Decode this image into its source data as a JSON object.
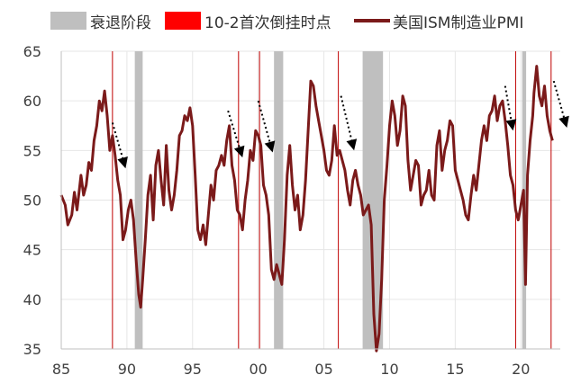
{
  "chart_data": {
    "type": "line",
    "legend": [
      {
        "name": "衰退阶段",
        "color": "#BFBFBF",
        "kind": "band"
      },
      {
        "name": "10-2首次倒挂时点",
        "color": "#FF0000",
        "kind": "vline"
      },
      {
        "name": "美国ISM制造业PMI",
        "color": "#7B1A1A",
        "kind": "line"
      }
    ],
    "xticks": [
      "85",
      "90",
      "95",
      "00",
      "05",
      "10",
      "15",
      "20"
    ],
    "xtick_values": [
      1985,
      1990,
      1995,
      2000,
      2005,
      2010,
      2015,
      2020
    ],
    "yticks": [
      "35",
      "40",
      "45",
      "50",
      "55",
      "60",
      "65"
    ],
    "ylim": [
      35,
      65
    ],
    "xlim": [
      1985,
      2023
    ],
    "recessions": [
      [
        1990.6,
        1991.2
      ],
      [
        2001.2,
        2001.9
      ],
      [
        2007.95,
        2009.5
      ],
      [
        2020.1,
        2020.4
      ]
    ],
    "inversion_dates": [
      1988.9,
      1998.5,
      2000.1,
      2006.1,
      2019.6,
      2022.3
    ],
    "arrows": [
      {
        "from": [
          1988.9,
          57.8
        ],
        "to": [
          1989.9,
          53.2
        ]
      },
      {
        "from": [
          1997.7,
          59.0
        ],
        "to": [
          1998.8,
          54.3
        ]
      },
      {
        "from": [
          2000.0,
          60.0
        ],
        "to": [
          2001.1,
          54.8
        ]
      },
      {
        "from": [
          2006.3,
          60.5
        ],
        "to": [
          2007.3,
          55.0
        ]
      },
      {
        "from": [
          2018.8,
          61.5
        ],
        "to": [
          2019.4,
          57.0
        ]
      },
      {
        "from": [
          2022.5,
          62.0
        ],
        "to": [
          2023.5,
          57.3
        ]
      }
    ],
    "series": [
      {
        "name": "美国ISM制造业PMI",
        "color": "#7B1A1A",
        "points": [
          [
            1985.0,
            50.5
          ],
          [
            1985.3,
            49.5
          ],
          [
            1985.5,
            47.5
          ],
          [
            1985.8,
            48.5
          ],
          [
            1986.0,
            50.8
          ],
          [
            1986.2,
            49.0
          ],
          [
            1986.5,
            52.5
          ],
          [
            1986.7,
            50.5
          ],
          [
            1986.9,
            51.5
          ],
          [
            1987.1,
            53.8
          ],
          [
            1987.3,
            53.0
          ],
          [
            1987.5,
            56.0
          ],
          [
            1987.7,
            57.5
          ],
          [
            1987.9,
            60.0
          ],
          [
            1988.1,
            59.0
          ],
          [
            1988.3,
            61.0
          ],
          [
            1988.5,
            58.5
          ],
          [
            1988.7,
            55.0
          ],
          [
            1988.9,
            56.5
          ],
          [
            1989.1,
            54.5
          ],
          [
            1989.3,
            52.0
          ],
          [
            1989.5,
            50.5
          ],
          [
            1989.7,
            46.0
          ],
          [
            1989.9,
            47.0
          ],
          [
            1990.1,
            49.0
          ],
          [
            1990.3,
            50.0
          ],
          [
            1990.5,
            48.0
          ],
          [
            1990.7,
            44.0
          ],
          [
            1990.9,
            40.5
          ],
          [
            1991.05,
            39.2
          ],
          [
            1991.2,
            42.0
          ],
          [
            1991.4,
            46.0
          ],
          [
            1991.6,
            50.5
          ],
          [
            1991.8,
            52.5
          ],
          [
            1992.0,
            48.0
          ],
          [
            1992.2,
            53.5
          ],
          [
            1992.4,
            55.0
          ],
          [
            1992.6,
            52.0
          ],
          [
            1992.8,
            49.5
          ],
          [
            1993.0,
            55.5
          ],
          [
            1993.2,
            51.0
          ],
          [
            1993.4,
            49.0
          ],
          [
            1993.6,
            50.5
          ],
          [
            1993.8,
            53.0
          ],
          [
            1994.0,
            56.5
          ],
          [
            1994.2,
            57.0
          ],
          [
            1994.4,
            58.5
          ],
          [
            1994.6,
            58.0
          ],
          [
            1994.8,
            59.3
          ],
          [
            1995.0,
            57.5
          ],
          [
            1995.2,
            52.5
          ],
          [
            1995.4,
            47.0
          ],
          [
            1995.6,
            46.0
          ],
          [
            1995.8,
            47.5
          ],
          [
            1996.0,
            45.5
          ],
          [
            1996.2,
            48.5
          ],
          [
            1996.4,
            51.5
          ],
          [
            1996.6,
            50.0
          ],
          [
            1996.8,
            53.0
          ],
          [
            1997.0,
            53.5
          ],
          [
            1997.2,
            54.5
          ],
          [
            1997.4,
            53.5
          ],
          [
            1997.6,
            56.0
          ],
          [
            1997.8,
            57.5
          ],
          [
            1998.0,
            53.5
          ],
          [
            1998.2,
            52.0
          ],
          [
            1998.4,
            49.0
          ],
          [
            1998.6,
            48.5
          ],
          [
            1998.8,
            47.0
          ],
          [
            1999.0,
            50.0
          ],
          [
            1999.2,
            52.0
          ],
          [
            1999.4,
            55.0
          ],
          [
            1999.6,
            54.0
          ],
          [
            1999.8,
            57.0
          ],
          [
            2000.0,
            56.5
          ],
          [
            2000.2,
            55.5
          ],
          [
            2000.4,
            51.5
          ],
          [
            2000.6,
            50.5
          ],
          [
            2000.8,
            48.5
          ],
          [
            2001.0,
            43.0
          ],
          [
            2001.2,
            42.0
          ],
          [
            2001.4,
            43.5
          ],
          [
            2001.6,
            42.5
          ],
          [
            2001.8,
            41.5
          ],
          [
            2002.0,
            46.0
          ],
          [
            2002.2,
            52.5
          ],
          [
            2002.4,
            55.5
          ],
          [
            2002.6,
            51.5
          ],
          [
            2002.8,
            49.0
          ],
          [
            2003.0,
            50.5
          ],
          [
            2003.2,
            47.0
          ],
          [
            2003.4,
            48.5
          ],
          [
            2003.6,
            52.0
          ],
          [
            2003.8,
            57.0
          ],
          [
            2004.0,
            62.0
          ],
          [
            2004.2,
            61.5
          ],
          [
            2004.4,
            59.5
          ],
          [
            2004.6,
            58.0
          ],
          [
            2004.8,
            56.5
          ],
          [
            2005.0,
            55.0
          ],
          [
            2005.2,
            53.0
          ],
          [
            2005.4,
            52.5
          ],
          [
            2005.6,
            54.0
          ],
          [
            2005.8,
            57.5
          ],
          [
            2006.0,
            54.5
          ],
          [
            2006.2,
            55.0
          ],
          [
            2006.4,
            54.0
          ],
          [
            2006.6,
            53.0
          ],
          [
            2006.8,
            51.0
          ],
          [
            2007.0,
            49.5
          ],
          [
            2007.2,
            52.0
          ],
          [
            2007.4,
            53.0
          ],
          [
            2007.6,
            51.5
          ],
          [
            2007.8,
            50.5
          ],
          [
            2008.0,
            48.5
          ],
          [
            2008.2,
            49.0
          ],
          [
            2008.4,
            49.5
          ],
          [
            2008.6,
            47.5
          ],
          [
            2008.8,
            38.5
          ],
          [
            2009.0,
            34.8
          ],
          [
            2009.2,
            36.5
          ],
          [
            2009.4,
            42.0
          ],
          [
            2009.6,
            50.0
          ],
          [
            2009.8,
            53.5
          ],
          [
            2010.0,
            57.5
          ],
          [
            2010.2,
            60.0
          ],
          [
            2010.4,
            58.5
          ],
          [
            2010.6,
            55.5
          ],
          [
            2010.8,
            57.0
          ],
          [
            2011.0,
            60.5
          ],
          [
            2011.2,
            59.5
          ],
          [
            2011.4,
            54.0
          ],
          [
            2011.6,
            51.0
          ],
          [
            2011.8,
            52.5
          ],
          [
            2012.0,
            54.0
          ],
          [
            2012.2,
            53.5
          ],
          [
            2012.4,
            49.5
          ],
          [
            2012.6,
            50.5
          ],
          [
            2012.8,
            51.0
          ],
          [
            2013.0,
            53.0
          ],
          [
            2013.2,
            50.5
          ],
          [
            2013.4,
            50.0
          ],
          [
            2013.6,
            55.5
          ],
          [
            2013.8,
            57.0
          ],
          [
            2014.0,
            53.0
          ],
          [
            2014.2,
            55.0
          ],
          [
            2014.4,
            56.0
          ],
          [
            2014.6,
            58.0
          ],
          [
            2014.8,
            57.5
          ],
          [
            2015.0,
            53.0
          ],
          [
            2015.2,
            52.0
          ],
          [
            2015.4,
            51.0
          ],
          [
            2015.6,
            50.0
          ],
          [
            2015.8,
            48.5
          ],
          [
            2016.0,
            48.0
          ],
          [
            2016.2,
            50.5
          ],
          [
            2016.4,
            52.5
          ],
          [
            2016.6,
            51.0
          ],
          [
            2016.8,
            53.5
          ],
          [
            2017.0,
            56.0
          ],
          [
            2017.2,
            57.5
          ],
          [
            2017.4,
            56.0
          ],
          [
            2017.6,
            58.5
          ],
          [
            2017.8,
            59.0
          ],
          [
            2018.0,
            60.5
          ],
          [
            2018.2,
            58.0
          ],
          [
            2018.4,
            59.5
          ],
          [
            2018.6,
            60.0
          ],
          [
            2018.8,
            58.0
          ],
          [
            2019.0,
            55.5
          ],
          [
            2019.2,
            52.5
          ],
          [
            2019.4,
            51.5
          ],
          [
            2019.6,
            49.0
          ],
          [
            2019.8,
            48.0
          ],
          [
            2020.0,
            49.5
          ],
          [
            2020.2,
            51.0
          ],
          [
            2020.35,
            41.5
          ],
          [
            2020.5,
            52.5
          ],
          [
            2020.7,
            56.0
          ],
          [
            2020.9,
            58.5
          ],
          [
            2021.0,
            60.8
          ],
          [
            2021.2,
            63.5
          ],
          [
            2021.4,
            60.5
          ],
          [
            2021.6,
            59.5
          ],
          [
            2021.8,
            61.5
          ],
          [
            2022.0,
            58.5
          ],
          [
            2022.2,
            57.0
          ],
          [
            2022.4,
            56.0
          ]
        ]
      }
    ]
  }
}
